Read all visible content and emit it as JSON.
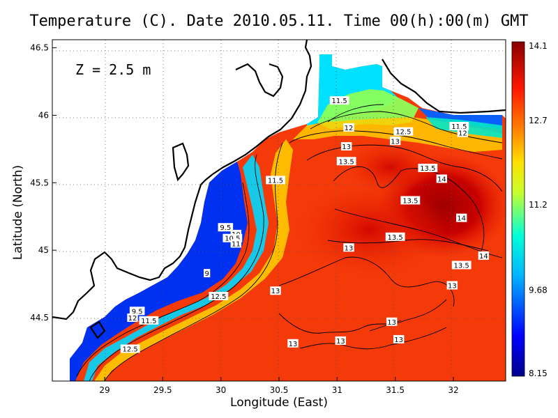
{
  "title": "Temperature (C). Date 2010.05.11. Time 00(h):00(m) GMT",
  "xlabel": "Longitude (East)",
  "ylabel": "Latitude (North)",
  "depth_label": "Z = 2.5 m",
  "chart_data": {
    "type": "heatmap",
    "variable": "Temperature",
    "units": "C",
    "depth": "2.5 m",
    "x_ticks": [
      "29",
      "29.5",
      "30",
      "30.5",
      "31",
      "31.5",
      "32"
    ],
    "y_ticks": [
      "44.5",
      "45",
      "45.5",
      "46",
      "46.5"
    ],
    "xlim": [
      28.55,
      32.45
    ],
    "ylim": [
      44.03,
      46.56
    ],
    "colorbar": {
      "min": 8.15,
      "max": 14.1,
      "tick_labels": [
        "14.1",
        "12.7",
        "11.2",
        "9.68",
        "8.15"
      ]
    },
    "contour_labels": [
      {
        "value": "11.5",
        "lon": 31.02,
        "lat": 46.11
      },
      {
        "value": "12",
        "lon": 31.1,
        "lat": 45.91
      },
      {
        "value": "12.5",
        "lon": 31.57,
        "lat": 45.88
      },
      {
        "value": "13",
        "lon": 31.5,
        "lat": 45.81
      },
      {
        "value": "11.5",
        "lon": 32.05,
        "lat": 45.92
      },
      {
        "value": "12",
        "lon": 32.08,
        "lat": 45.87
      },
      {
        "value": "13",
        "lon": 31.08,
        "lat": 45.77
      },
      {
        "value": "13.5",
        "lon": 31.08,
        "lat": 45.66
      },
      {
        "value": "13.5",
        "lon": 31.78,
        "lat": 45.61
      },
      {
        "value": "14",
        "lon": 31.9,
        "lat": 45.53
      },
      {
        "value": "13.5",
        "lon": 31.63,
        "lat": 45.37
      },
      {
        "value": "14",
        "lon": 32.07,
        "lat": 45.24
      },
      {
        "value": "11.5",
        "lon": 30.47,
        "lat": 45.52
      },
      {
        "value": "9.5",
        "lon": 30.04,
        "lat": 45.17
      },
      {
        "value": "10",
        "lon": 30.13,
        "lat": 45.12
      },
      {
        "value": "10.5",
        "lon": 30.1,
        "lat": 45.09
      },
      {
        "value": "11",
        "lon": 30.13,
        "lat": 45.05
      },
      {
        "value": "13",
        "lon": 31.1,
        "lat": 45.02
      },
      {
        "value": "13.5",
        "lon": 31.5,
        "lat": 45.1
      },
      {
        "value": "14",
        "lon": 32.26,
        "lat": 44.96
      },
      {
        "value": "13.5",
        "lon": 32.07,
        "lat": 44.89
      },
      {
        "value": "9",
        "lon": 29.88,
        "lat": 44.83
      },
      {
        "value": "13",
        "lon": 31.99,
        "lat": 44.74
      },
      {
        "value": "12.5",
        "lon": 29.98,
        "lat": 44.66
      },
      {
        "value": "13",
        "lon": 30.47,
        "lat": 44.7
      },
      {
        "value": "9.5",
        "lon": 29.28,
        "lat": 44.55
      },
      {
        "value": "12",
        "lon": 29.24,
        "lat": 44.5
      },
      {
        "value": "11.5",
        "lon": 29.38,
        "lat": 44.48
      },
      {
        "value": "13",
        "lon": 31.47,
        "lat": 44.47
      },
      {
        "value": "13",
        "lon": 31.53,
        "lat": 44.34
      },
      {
        "value": "13",
        "lon": 31.03,
        "lat": 44.33
      },
      {
        "value": "13",
        "lon": 30.62,
        "lat": 44.31
      },
      {
        "value": "12.5",
        "lon": 29.22,
        "lat": 44.27
      }
    ]
  }
}
